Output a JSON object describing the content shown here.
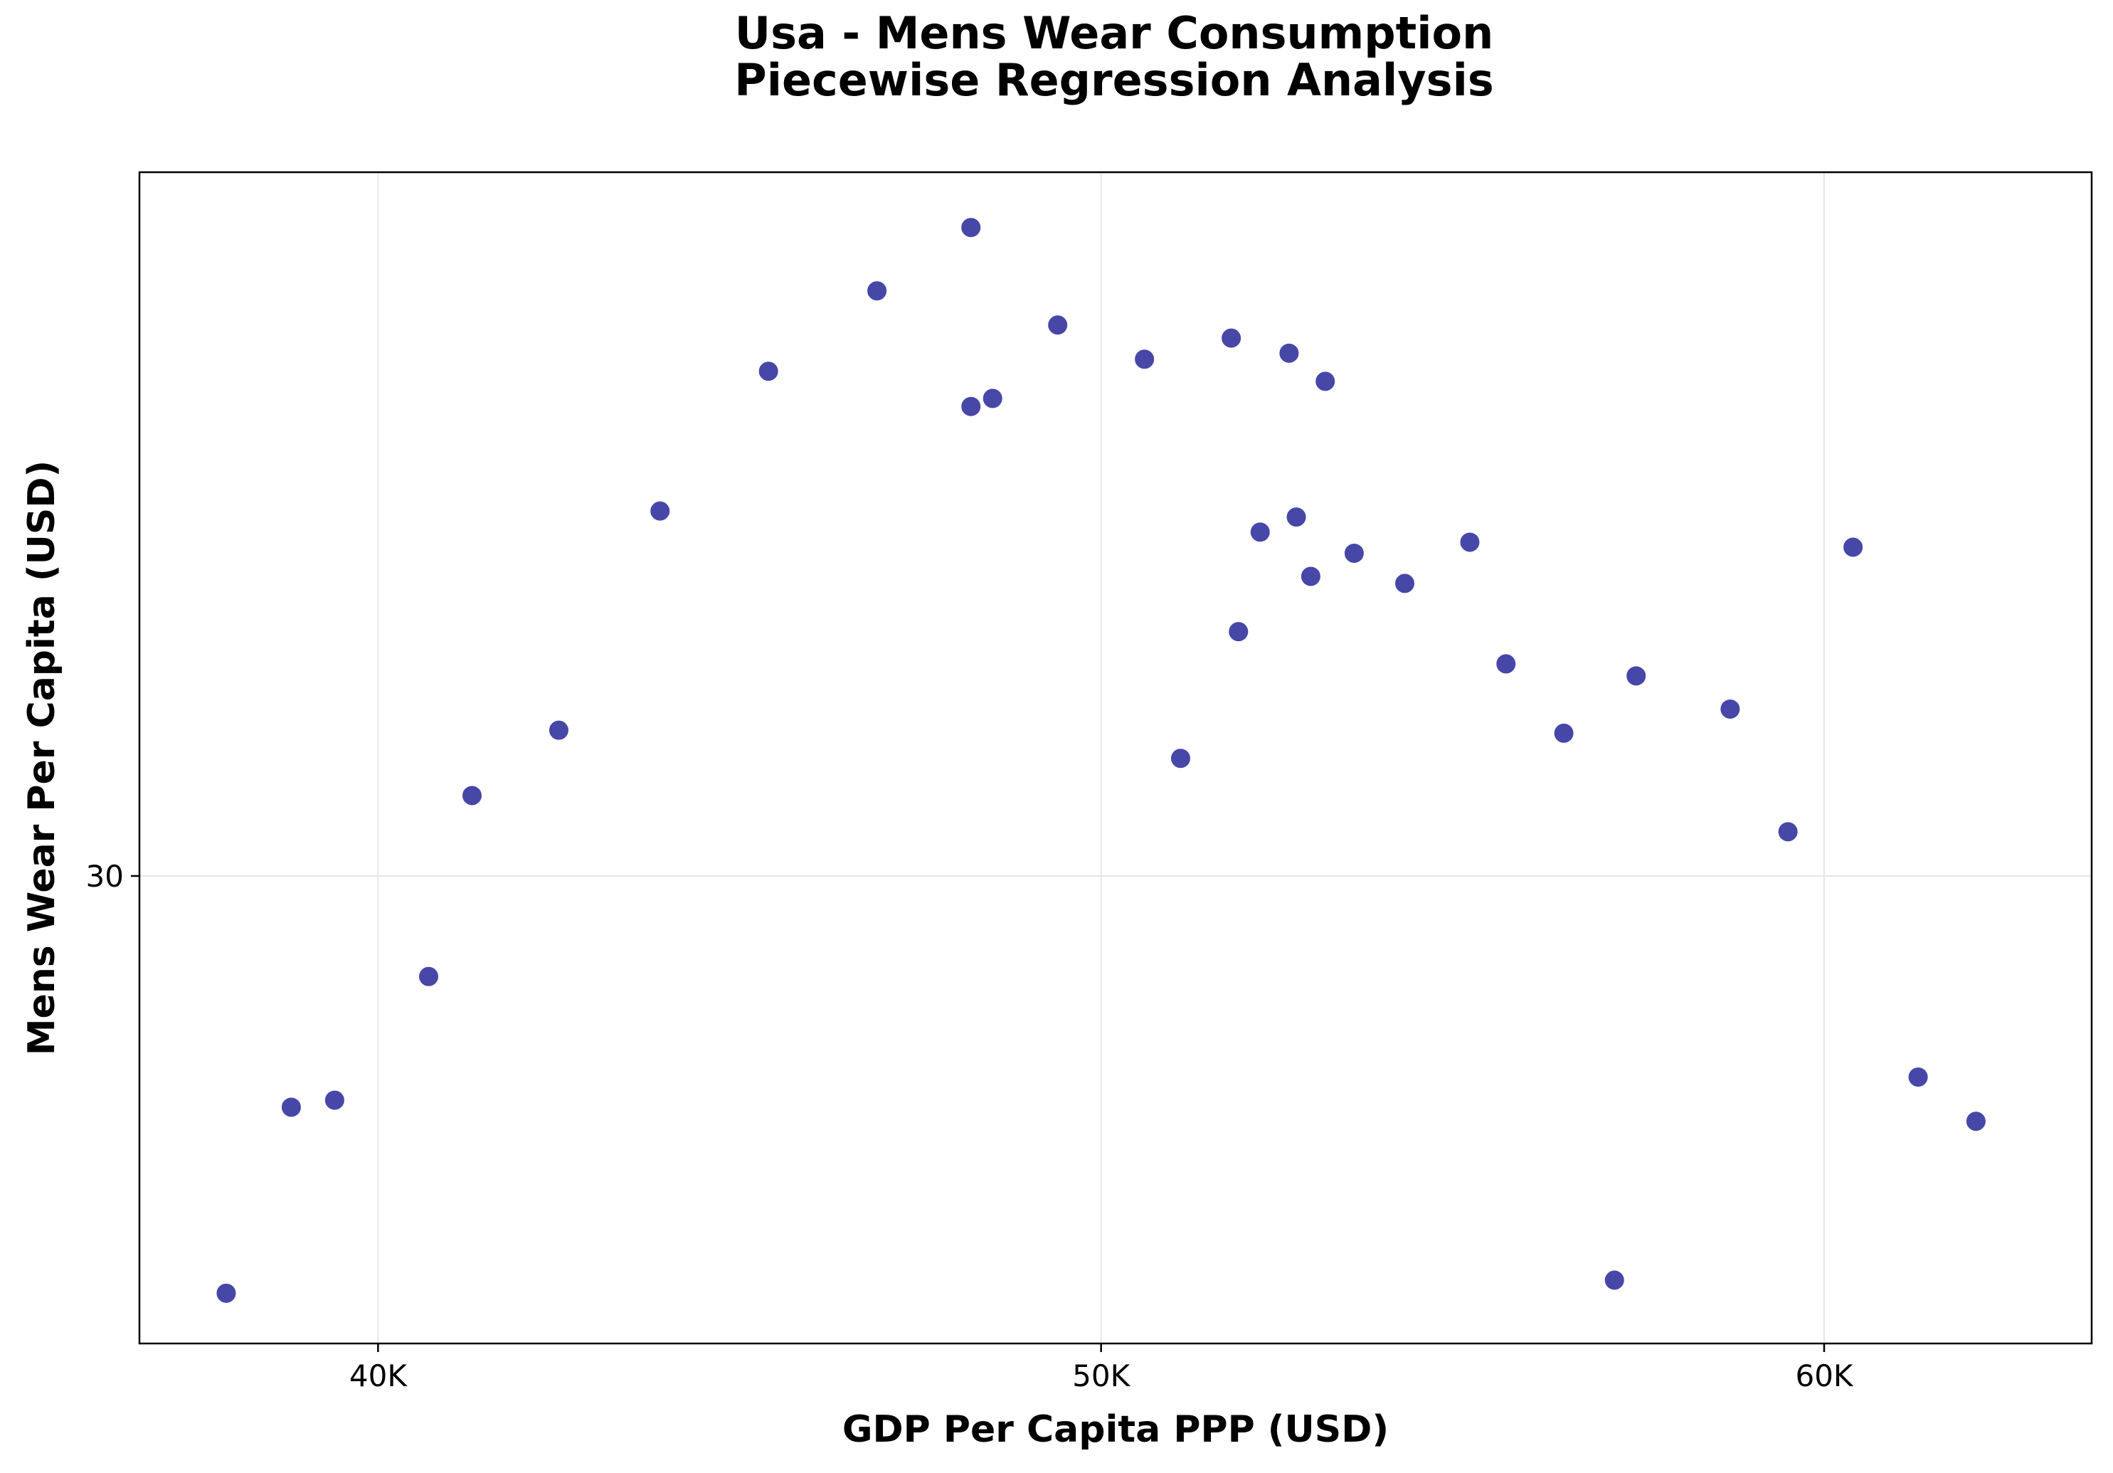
{
  "chart_data": {
    "type": "scatter",
    "title_line1": "Usa - Mens Wear Consumption",
    "title_line2": "Piecewise Regression Analysis",
    "xlabel": "GDP Per Capita PPP (USD)",
    "ylabel": "Mens Wear Per Capita (USD)",
    "xlim": [
      36700,
      63700
    ],
    "ylim": [
      25.35,
      37.0
    ],
    "x_ticks": [
      40000,
      50000,
      60000
    ],
    "x_tick_labels": [
      "40K",
      "50K",
      "60K"
    ],
    "y_ticks": [
      30
    ],
    "y_tick_labels": [
      "30"
    ],
    "grid": true,
    "point_color": "#4747a8",
    "points": [
      {
        "x": 37900,
        "y": 25.85
      },
      {
        "x": 38800,
        "y": 27.7
      },
      {
        "x": 39400,
        "y": 27.77
      },
      {
        "x": 40700,
        "y": 29.0
      },
      {
        "x": 41300,
        "y": 30.8
      },
      {
        "x": 42500,
        "y": 31.45
      },
      {
        "x": 43900,
        "y": 33.63
      },
      {
        "x": 45400,
        "y": 35.02
      },
      {
        "x": 46900,
        "y": 35.82
      },
      {
        "x": 48200,
        "y": 36.45
      },
      {
        "x": 48200,
        "y": 34.67
      },
      {
        "x": 48500,
        "y": 34.75
      },
      {
        "x": 49400,
        "y": 35.48
      },
      {
        "x": 50600,
        "y": 35.14
      },
      {
        "x": 51100,
        "y": 31.17
      },
      {
        "x": 51800,
        "y": 35.35
      },
      {
        "x": 51900,
        "y": 32.43
      },
      {
        "x": 52200,
        "y": 33.42
      },
      {
        "x": 52600,
        "y": 35.2
      },
      {
        "x": 52700,
        "y": 33.57
      },
      {
        "x": 52900,
        "y": 32.98
      },
      {
        "x": 53100,
        "y": 34.92
      },
      {
        "x": 53500,
        "y": 33.21
      },
      {
        "x": 54200,
        "y": 32.91
      },
      {
        "x": 55100,
        "y": 33.32
      },
      {
        "x": 55600,
        "y": 32.11
      },
      {
        "x": 56400,
        "y": 31.42
      },
      {
        "x": 57100,
        "y": 25.98
      },
      {
        "x": 57400,
        "y": 31.99
      },
      {
        "x": 58700,
        "y": 31.66
      },
      {
        "x": 59500,
        "y": 30.44
      },
      {
        "x": 60400,
        "y": 33.27
      },
      {
        "x": 61300,
        "y": 28.0
      },
      {
        "x": 62100,
        "y": 27.56
      }
    ]
  }
}
